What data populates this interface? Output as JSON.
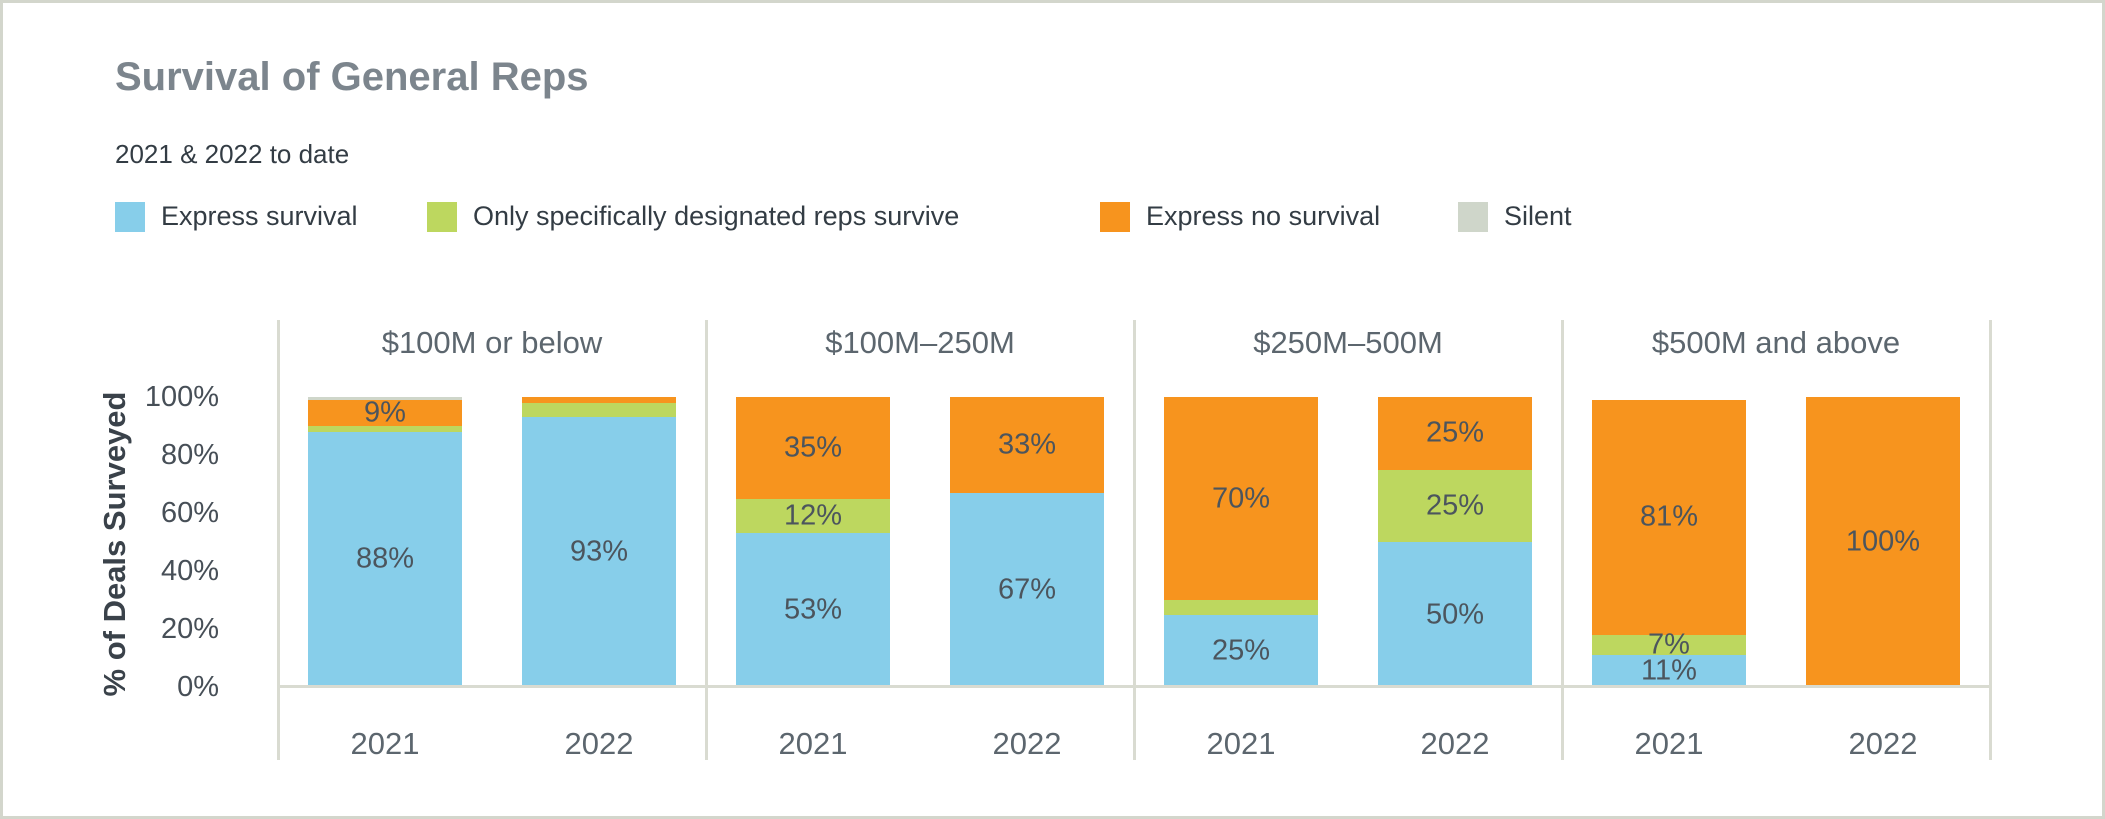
{
  "header": {
    "title": "Survival of General Reps",
    "subtitle": "2021 & 2022 to date"
  },
  "colors": {
    "express_survival": "#87CEEA",
    "designated_only": "#BDD75F",
    "express_no_survival": "#F7941E",
    "silent": "#CFD6CA",
    "separator": "#D9DBD1",
    "title_text": "#7C858D",
    "body_text": "#333C44",
    "axis_text": "#474F57",
    "panel_title_text": "#5C666E",
    "bar_label_text": "#4C555D"
  },
  "legend": {
    "items": [
      {
        "label": "Express survival",
        "color_key": "express_survival"
      },
      {
        "label": "Only specifically designated reps survive",
        "color_key": "designated_only"
      },
      {
        "label": "Express no survival",
        "color_key": "express_no_survival"
      },
      {
        "label": "Silent",
        "color_key": "silent"
      }
    ]
  },
  "chart_data": {
    "type": "bar",
    "stacked": true,
    "units": "percent",
    "title": "Survival of General Reps",
    "subtitle": "2021 & 2022 to date",
    "ylabel": "% of Deals Surveyed",
    "ylim": [
      0,
      100
    ],
    "grid": false,
    "legend_position": "top",
    "yticks": [
      {
        "value": 100,
        "label": "100%"
      },
      {
        "value": 80,
        "label": "80%"
      },
      {
        "value": 60,
        "label": "60%"
      },
      {
        "value": 40,
        "label": "40%"
      },
      {
        "value": 20,
        "label": "20%"
      },
      {
        "value": 0,
        "label": "0%"
      }
    ],
    "series_order": [
      "Express survival",
      "Only specifically designated reps survive",
      "Express no survival",
      "Silent"
    ],
    "groups": [
      {
        "title": "$100M or below",
        "bars": [
          {
            "year": "2021",
            "segments": [
              {
                "series": "Express survival",
                "color_key": "express_survival",
                "value": 88,
                "label": "88%"
              },
              {
                "series": "Only specifically designated reps survive",
                "color_key": "designated_only",
                "value": 2,
                "label": ""
              },
              {
                "series": "Express no survival",
                "color_key": "express_no_survival",
                "value": 9,
                "label": "9%"
              },
              {
                "series": "Silent",
                "color_key": "silent",
                "value": 1,
                "label": ""
              }
            ]
          },
          {
            "year": "2022",
            "segments": [
              {
                "series": "Express survival",
                "color_key": "express_survival",
                "value": 93,
                "label": "93%"
              },
              {
                "series": "Only specifically designated reps survive",
                "color_key": "designated_only",
                "value": 5,
                "label": ""
              },
              {
                "series": "Express no survival",
                "color_key": "express_no_survival",
                "value": 2,
                "label": ""
              }
            ]
          }
        ]
      },
      {
        "title": "$100M–250M",
        "bars": [
          {
            "year": "2021",
            "segments": [
              {
                "series": "Express survival",
                "color_key": "express_survival",
                "value": 53,
                "label": "53%"
              },
              {
                "series": "Only specifically designated reps survive",
                "color_key": "designated_only",
                "value": 12,
                "label": "12%"
              },
              {
                "series": "Express no survival",
                "color_key": "express_no_survival",
                "value": 35,
                "label": "35%"
              }
            ]
          },
          {
            "year": "2022",
            "segments": [
              {
                "series": "Express survival",
                "color_key": "express_survival",
                "value": 67,
                "label": "67%"
              },
              {
                "series": "Express no survival",
                "color_key": "express_no_survival",
                "value": 33,
                "label": "33%"
              }
            ]
          }
        ]
      },
      {
        "title": "$250M–500M",
        "bars": [
          {
            "year": "2021",
            "segments": [
              {
                "series": "Express survival",
                "color_key": "express_survival",
                "value": 25,
                "label": "25%"
              },
              {
                "series": "Only specifically designated reps survive",
                "color_key": "designated_only",
                "value": 5,
                "label": ""
              },
              {
                "series": "Express no survival",
                "color_key": "express_no_survival",
                "value": 70,
                "label": "70%"
              }
            ]
          },
          {
            "year": "2022",
            "segments": [
              {
                "series": "Express survival",
                "color_key": "express_survival",
                "value": 50,
                "label": "50%"
              },
              {
                "series": "Only specifically designated reps survive",
                "color_key": "designated_only",
                "value": 25,
                "label": "25%"
              },
              {
                "series": "Express no survival",
                "color_key": "express_no_survival",
                "value": 25,
                "label": "25%"
              }
            ]
          }
        ]
      },
      {
        "title": "$500M and above",
        "bars": [
          {
            "year": "2021",
            "segments": [
              {
                "series": "Express survival",
                "color_key": "express_survival",
                "value": 11,
                "label": "11%"
              },
              {
                "series": "Only specifically designated reps survive",
                "color_key": "designated_only",
                "value": 7,
                "label": "7%"
              },
              {
                "series": "Express no survival",
                "color_key": "express_no_survival",
                "value": 81,
                "label": "81%"
              }
            ]
          },
          {
            "year": "2022",
            "segments": [
              {
                "series": "Express no survival",
                "color_key": "express_no_survival",
                "value": 100,
                "label": "100%"
              }
            ]
          }
        ]
      }
    ]
  }
}
